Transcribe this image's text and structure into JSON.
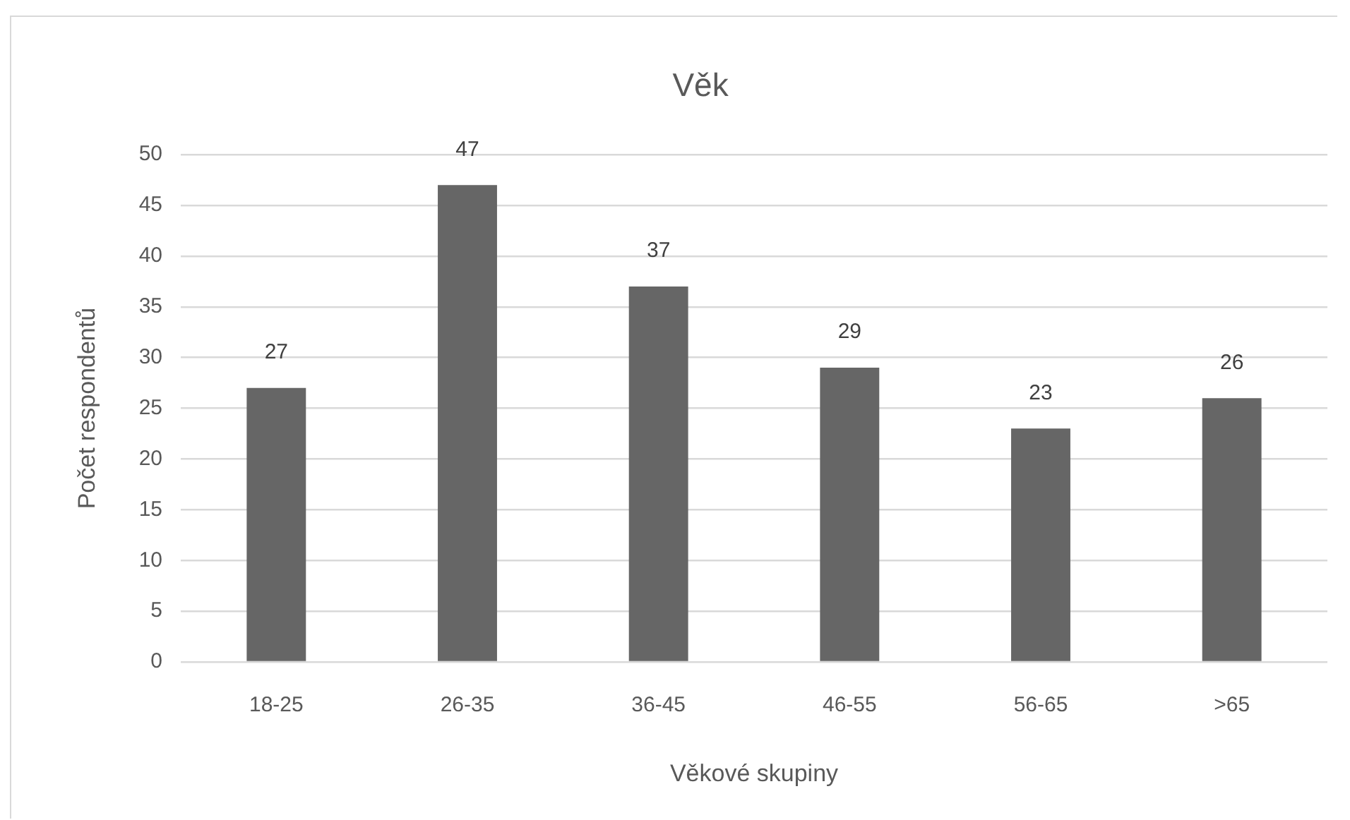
{
  "chart_data": {
    "type": "bar",
    "title": "Věk",
    "xlabel": "Věkové skupiny",
    "ylabel": "Počet respondentů",
    "categories": [
      "18-25",
      "26-35",
      "36-45",
      "46-55",
      "56-65",
      ">65"
    ],
    "values": [
      27,
      47,
      37,
      29,
      23,
      26
    ],
    "color": "#666666",
    "ylim": [
      0,
      50
    ],
    "yticks": [
      0,
      5,
      10,
      15,
      20,
      25,
      30,
      35,
      40,
      45,
      50
    ],
    "grid": "y",
    "data_labels": true
  }
}
